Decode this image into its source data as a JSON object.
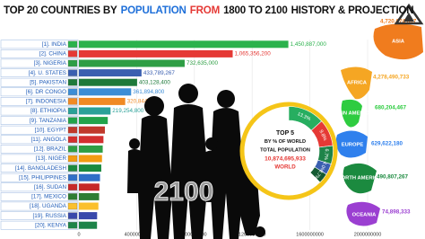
{
  "chart_data": [
    {
      "type": "bar",
      "orientation": "horizontal",
      "title": [
        "TOP 20 COUNTRIES BY",
        "POPULATION",
        "FROM",
        "1800 TO 2100",
        "HISTORY & PROJECTION"
      ],
      "categories": [
        "[1]. INDIA",
        "[2]. CHINA",
        "[3]. NIGERIA",
        "[4]. U. STATES",
        "[5]. PAKISTAN",
        "[6]. DR CONGO",
        "[7]. INDONESIA",
        "[8]. ETHIOPIA",
        "[9]. TANZANIA",
        "[10]. EGYPT",
        "[11]. ANGOLA",
        "[12]. BRAZIL",
        "[13]. NIGER",
        "[14]. BANGLADESH",
        "[15]. PHILIPPINES",
        "[16]. SUDAN",
        "[17]. MEXICO",
        "[18]. UGANDA",
        "[19]. RUSSIA",
        "[20]. KENYA"
      ],
      "values": [
        1450887000,
        1065356200,
        732635000,
        433789267,
        403128400,
        361894800,
        320844467,
        219254800,
        200000000,
        180000000,
        170000000,
        165000000,
        160000000,
        155000000,
        146300000,
        142000000,
        140000000,
        135000000,
        126149000,
        125411000
      ],
      "value_labels": [
        "1,450,887,000",
        "1,065,356,200",
        "732,635,000",
        "433,789,267",
        "403,128,400",
        "361,894,800",
        "320,844,467",
        "219,254,800",
        null,
        null,
        null,
        null,
        null,
        null,
        null,
        null,
        null,
        null,
        null,
        null
      ],
      "colors": [
        "#2bb24c",
        "#e53935",
        "#2e9e44",
        "#3a5fb0",
        "#1f7a3a",
        "#3c8dd6",
        "#f08a24",
        "#2aa198",
        "#22a34a",
        "#c0392b",
        "#d32f2f",
        "#2e9e44",
        "#f39c12",
        "#1b8a3f",
        "#2f6fc7",
        "#c62828",
        "#2e7d32",
        "#fbc02d",
        "#3949ab",
        "#1e8449"
      ],
      "xlim": [
        0,
        2000000000
      ],
      "xticks": [
        0,
        400000000,
        800000000,
        1200000000,
        1600000000,
        2000000000
      ],
      "grid": true
    },
    {
      "type": "pie",
      "categories": [
        "INDIA",
        "CHINA",
        "NIGERIA",
        "U. STATES",
        "PAKISTAN"
      ],
      "values": [
        13.3,
        9.8,
        6.7,
        4.0,
        3.7
      ],
      "value_labels": [
        "13.3%",
        "9.8%",
        "6.7%",
        "4.0%",
        "3.7%"
      ],
      "colors": [
        "#27ae60",
        "#e53935",
        "#1e8449",
        "#3a5fb0",
        "#145a32"
      ],
      "center_lines": [
        "TOP 5",
        "BY % OF WORLD",
        "TOTAL POPULATION",
        "10,874,695,933",
        "WORLD"
      ]
    }
  ],
  "year": "2100",
  "regions": [
    {
      "name": "ASIA",
      "value": "4,720,674,867",
      "color": "#f07c1e"
    },
    {
      "name": "AFRICA",
      "value": "4,278,490,733",
      "color": "#f5a623"
    },
    {
      "name": "LATIN AMERICA",
      "value": "680,204,467",
      "color": "#2ecc40"
    },
    {
      "name": "EUROPE",
      "value": "629,622,180",
      "color": "#2f80ed"
    },
    {
      "name": "NORTH AMERICA",
      "value": "490,807,267",
      "color": "#1b8a3f"
    },
    {
      "name": "OCEANIA",
      "value": "74,898,333",
      "color": "#9b3fd1"
    }
  ]
}
